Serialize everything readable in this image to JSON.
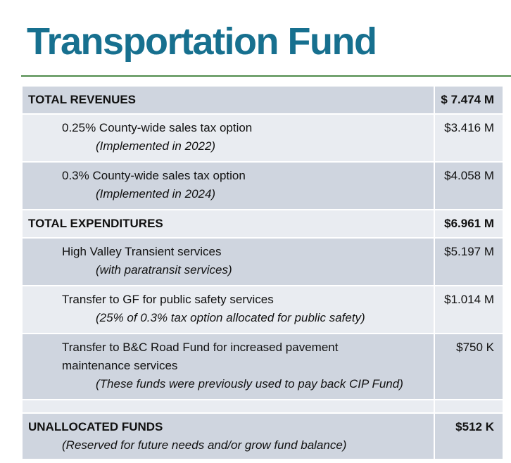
{
  "title": "Transportation Fund",
  "revenues": {
    "label": "TOTAL REVENUES",
    "amount": "$ 7.474 M",
    "items": [
      {
        "label": "0.25% County-wide sales tax option",
        "note": "(Implemented in 2022)",
        "amount": "$3.416 M"
      },
      {
        "label": "0.3% County-wide sales tax option",
        "note": "(Implemented in 2024)",
        "amount": "$4.058 M"
      }
    ]
  },
  "expenditures": {
    "label": "TOTAL EXPENDITURES",
    "amount": "$6.961 M",
    "items": [
      {
        "label": "High Valley Transient services",
        "note": "(with paratransit services)",
        "amount": "$5.197 M"
      },
      {
        "label": "Transfer to GF for public safety services",
        "note": "(25% of 0.3% tax option allocated for public safety)",
        "amount": "$1.014 M"
      },
      {
        "label": "Transfer to B&C Road Fund for increased pavement maintenance services",
        "note": "(These funds were previously used to pay back CIP Fund)",
        "amount": "$750 K"
      }
    ]
  },
  "unallocated": {
    "label": "UNALLOCATED FUNDS",
    "note": "(Reserved for future needs and/or grow fund balance)",
    "amount": "$512 K"
  }
}
